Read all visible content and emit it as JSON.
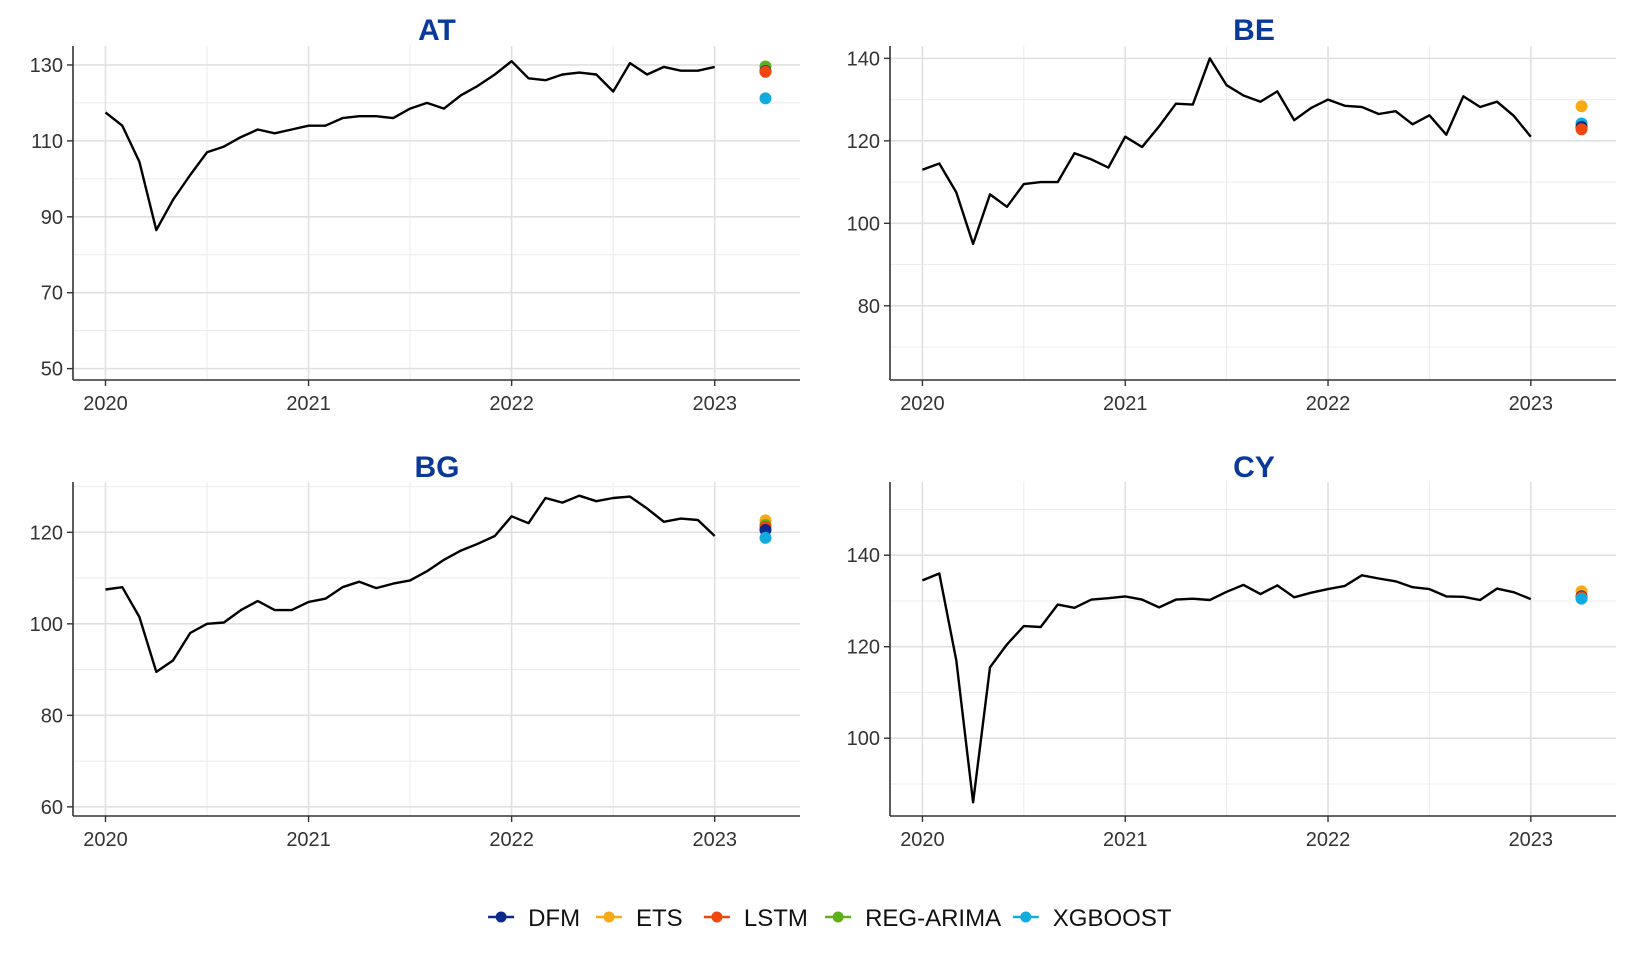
{
  "legend": {
    "items": [
      {
        "label": "DFM",
        "color": "#0b2a8c"
      },
      {
        "label": "ETS",
        "color": "#f7aa13"
      },
      {
        "label": "LSTM",
        "color": "#f0480c"
      },
      {
        "label": "REG-ARIMA",
        "color": "#5fb11a"
      },
      {
        "label": "XGBOOST",
        "color": "#12abe0"
      }
    ]
  },
  "line_color": "#000000",
  "chart_data": [
    {
      "type": "line",
      "title": "AT",
      "xticks": [
        "2020",
        "2021",
        "2022",
        "2023"
      ],
      "yticks": [
        50,
        70,
        90,
        110,
        130
      ],
      "xlim": [
        2019.84,
        2023.42
      ],
      "ylim": [
        47,
        135
      ],
      "series": [
        {
          "x": [
            2020.0,
            2020.083,
            2020.167,
            2020.25,
            2020.333,
            2020.417,
            2020.5,
            2020.583,
            2020.667,
            2020.75,
            2020.833,
            2020.917,
            2021.0,
            2021.083,
            2021.167,
            2021.25,
            2021.333,
            2021.417,
            2021.5,
            2021.583,
            2021.667,
            2021.75,
            2021.833,
            2021.917,
            2022.0,
            2022.083,
            2022.167,
            2022.25,
            2022.333,
            2022.417,
            2022.5,
            2022.583,
            2022.667,
            2022.75,
            2022.833,
            2022.917,
            2023.0
          ],
          "y": [
            117.5,
            114,
            104.5,
            86.5,
            94.5,
            101,
            107,
            108.5,
            111,
            113,
            112,
            113,
            114,
            114,
            116,
            116.5,
            116.5,
            116,
            118.5,
            120,
            118.5,
            122,
            124.5,
            127.5,
            131,
            126.5,
            126,
            127.5,
            128,
            127.5,
            123,
            130.5,
            127.5,
            129.5,
            128.5,
            128.5,
            129.5
          ]
        }
      ],
      "forecasts": [
        {
          "model": "REG-ARIMA",
          "x": 2023.25,
          "y": 129.6
        },
        {
          "model": "DFM",
          "x": 2023.25,
          "y": 128.4
        },
        {
          "model": "LSTM",
          "x": 2023.25,
          "y": 128.2
        },
        {
          "model": "XGBOOST",
          "x": 2023.25,
          "y": 121.2
        }
      ]
    },
    {
      "type": "line",
      "title": "BE",
      "xticks": [
        "2020",
        "2021",
        "2022",
        "2023"
      ],
      "yticks": [
        80,
        100,
        120,
        140
      ],
      "xlim": [
        2019.84,
        2023.42
      ],
      "ylim": [
        62,
        143
      ],
      "series": [
        {
          "x": [
            2020.0,
            2020.083,
            2020.167,
            2020.25,
            2020.333,
            2020.417,
            2020.5,
            2020.583,
            2020.667,
            2020.75,
            2020.833,
            2020.917,
            2021.0,
            2021.083,
            2021.167,
            2021.25,
            2021.333,
            2021.417,
            2021.5,
            2021.583,
            2021.667,
            2021.75,
            2021.833,
            2021.917,
            2022.0,
            2022.083,
            2022.167,
            2022.25,
            2022.333,
            2022.417,
            2022.5,
            2022.583,
            2022.667,
            2022.75,
            2022.833,
            2022.917,
            2023.0
          ],
          "y": [
            113,
            114.5,
            107.5,
            95,
            107,
            104,
            109.5,
            110,
            110,
            117,
            115.5,
            113.5,
            121,
            118.5,
            123.5,
            129,
            128.8,
            140,
            133.5,
            131,
            129.5,
            132,
            125,
            128,
            130,
            128.5,
            128.2,
            126.5,
            127.2,
            124,
            126.2,
            121.5,
            130.8,
            128.2,
            129.5,
            126,
            121
          ]
        }
      ],
      "forecasts": [
        {
          "model": "ETS",
          "x": 2023.25,
          "y": 128.4
        },
        {
          "model": "XGBOOST",
          "x": 2023.25,
          "y": 124.2
        },
        {
          "model": "DFM",
          "x": 2023.25,
          "y": 123.4
        },
        {
          "model": "LSTM",
          "x": 2023.25,
          "y": 122.8
        }
      ]
    },
    {
      "type": "line",
      "title": "BG",
      "xticks": [
        "2020",
        "2021",
        "2022",
        "2023"
      ],
      "yticks": [
        60,
        80,
        100,
        120
      ],
      "xlim": [
        2019.84,
        2023.42
      ],
      "ylim": [
        58,
        131
      ],
      "series": [
        {
          "x": [
            2020.0,
            2020.083,
            2020.167,
            2020.25,
            2020.333,
            2020.417,
            2020.5,
            2020.583,
            2020.667,
            2020.75,
            2020.833,
            2020.917,
            2021.0,
            2021.083,
            2021.167,
            2021.25,
            2021.333,
            2021.417,
            2021.5,
            2021.583,
            2021.667,
            2021.75,
            2021.833,
            2021.917,
            2022.0,
            2022.083,
            2022.167,
            2022.25,
            2022.333,
            2022.417,
            2022.5,
            2022.583,
            2022.667,
            2022.75,
            2022.833,
            2022.917,
            2023.0
          ],
          "y": [
            107.5,
            108,
            101.5,
            89.5,
            92,
            98,
            100,
            100.3,
            103,
            105,
            103,
            103,
            104.8,
            105.5,
            108,
            109.2,
            107.8,
            108.8,
            109.5,
            111.5,
            114,
            116,
            117.5,
            119.2,
            123.5,
            122,
            127.5,
            126.5,
            128,
            126.8,
            127.5,
            127.8,
            125.2,
            122.3,
            123,
            122.7,
            119.2
          ]
        }
      ],
      "forecasts": [
        {
          "model": "ETS",
          "x": 2023.25,
          "y": 122.6
        },
        {
          "model": "REG-ARIMA",
          "x": 2023.25,
          "y": 121.6
        },
        {
          "model": "LSTM",
          "x": 2023.25,
          "y": 121.2
        },
        {
          "model": "DFM",
          "x": 2023.25,
          "y": 120.5
        },
        {
          "model": "XGBOOST",
          "x": 2023.25,
          "y": 118.8
        }
      ]
    },
    {
      "type": "line",
      "title": "CY",
      "xticks": [
        "2020",
        "2021",
        "2022",
        "2023"
      ],
      "yticks": [
        100,
        120,
        140
      ],
      "xlim": [
        2019.84,
        2023.42
      ],
      "ylim": [
        83,
        156
      ],
      "series": [
        {
          "x": [
            2020.0,
            2020.083,
            2020.167,
            2020.25,
            2020.333,
            2020.417,
            2020.5,
            2020.583,
            2020.667,
            2020.75,
            2020.833,
            2020.917,
            2021.0,
            2021.083,
            2021.167,
            2021.25,
            2021.333,
            2021.417,
            2021.5,
            2021.583,
            2021.667,
            2021.75,
            2021.833,
            2021.917,
            2022.0,
            2022.083,
            2022.167,
            2022.25,
            2022.333,
            2022.417,
            2022.5,
            2022.583,
            2022.667,
            2022.75,
            2022.833,
            2022.917,
            2023.0
          ],
          "y": [
            134.5,
            136,
            117,
            86,
            115.5,
            120.5,
            124.5,
            124.3,
            129.2,
            128.5,
            130.3,
            130.6,
            131,
            130.3,
            128.6,
            130.3,
            130.5,
            130.2,
            132,
            133.5,
            131.5,
            133.4,
            130.8,
            131.8,
            132.6,
            133.3,
            135.6,
            134.9,
            134.3,
            133,
            132.6,
            131,
            130.9,
            130.2,
            132.7,
            131.9,
            130.4
          ]
        }
      ],
      "forecasts": [
        {
          "model": "ETS",
          "x": 2023.25,
          "y": 132.1
        },
        {
          "model": "DFM",
          "x": 2023.25,
          "y": 131.0
        },
        {
          "model": "LSTM",
          "x": 2023.25,
          "y": 130.8
        },
        {
          "model": "XGBOOST",
          "x": 2023.25,
          "y": 130.5
        }
      ]
    }
  ]
}
